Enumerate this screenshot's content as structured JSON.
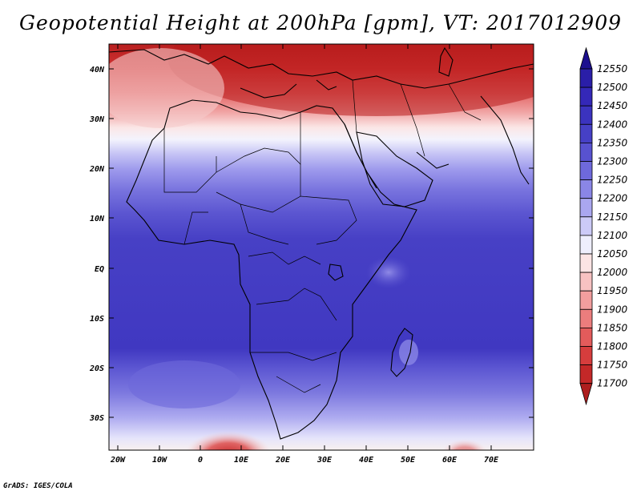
{
  "title": "Geopotential Height at 200hPa [gpm], VT: 2017012909",
  "credit": "GrADS: IGES/COLA",
  "lat_labels": [
    "40N",
    "30N",
    "20N",
    "10N",
    "EQ",
    "10S",
    "20S",
    "30S"
  ],
  "lon_labels": [
    "20W",
    "10W",
    "0",
    "10E",
    "20E",
    "30E",
    "40E",
    "50E",
    "60E",
    "70E"
  ],
  "colorbar": {
    "levels": [
      "12550",
      "12500",
      "12450",
      "12400",
      "12350",
      "12300",
      "12250",
      "12200",
      "12150",
      "12100",
      "12050",
      "12000",
      "11950",
      "11900",
      "11850",
      "11800",
      "11750",
      "11700"
    ],
    "colors": [
      "#1c0f8f",
      "#2a1ea8",
      "#3428b8",
      "#3b33bf",
      "#4640c6",
      "#5852d0",
      "#6e69db",
      "#8a86e6",
      "#aaa7f0",
      "#cccaf7",
      "#eeeefc",
      "#fbe4e4",
      "#f7c2c2",
      "#f29e9e",
      "#ec7d7d",
      "#e35b5b",
      "#d63d3d",
      "#c42828",
      "#ae1e1e"
    ]
  },
  "map": {
    "lat_range": [
      "36S",
      "45N"
    ],
    "lon_range": [
      "22W",
      "80E"
    ]
  }
}
